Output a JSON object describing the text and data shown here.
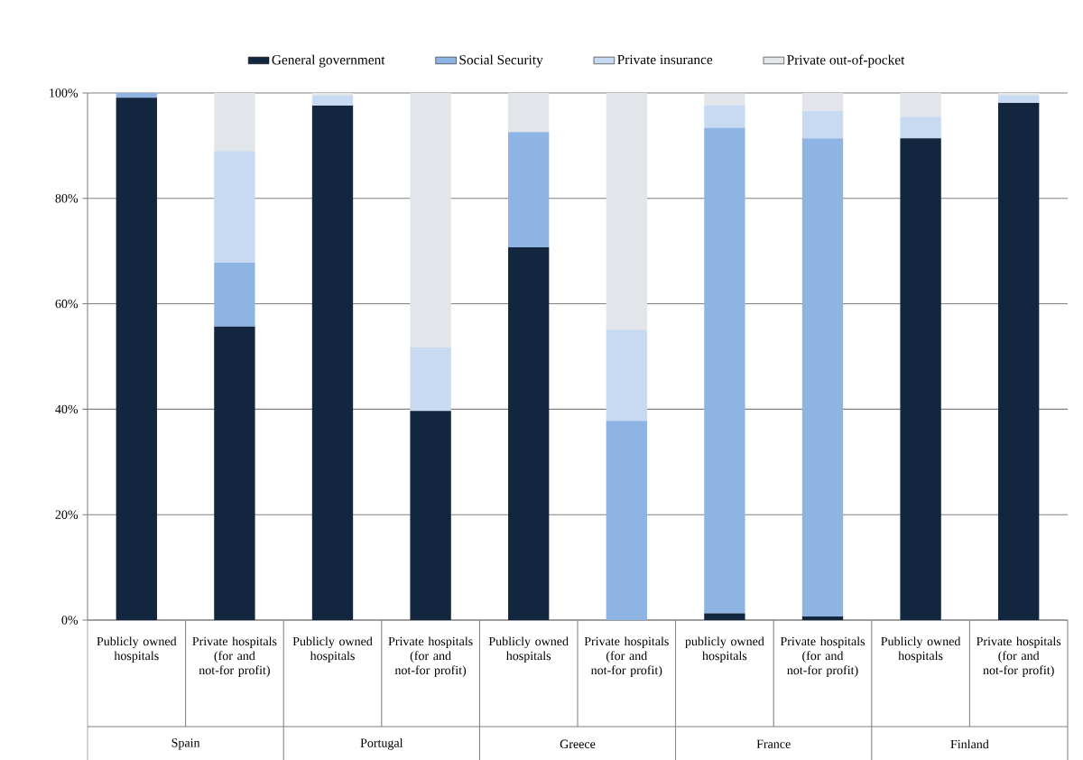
{
  "chart_data": {
    "type": "bar",
    "stacked": true,
    "categories": [
      "Publicly owned hospitals",
      "Private hospitals (for and not-for profit)",
      "Publicly owned hospitals",
      "Private hospitals (for and not-for profit)",
      "Publicly owned hospitals",
      "Private hospitals (for and not-for profit)",
      "publicly owned hospitals",
      "Private hospitals (for and not-for profit)",
      "Publicly owned hospitals",
      "Private hospitals (for and not-for profit)"
    ],
    "series": [
      {
        "name": "General government",
        "color": "#12263f",
        "values": [
          99.1,
          55.7,
          97.6,
          39.7,
          70.7,
          null,
          1.3,
          0.7,
          91.4,
          98.1
        ]
      },
      {
        "name": "Social Security",
        "color": "#8eb4e3",
        "values": [
          0.9,
          12.1,
          null,
          null,
          21.9,
          37.8,
          92.1,
          90.7,
          null,
          null
        ]
      },
      {
        "name": "Private insurance",
        "color": "#c7daf1",
        "values": [
          null,
          21.2,
          1.9,
          12.0,
          null,
          17.3,
          4.3,
          5.2,
          4.1,
          1.4
        ]
      },
      {
        "name": "Private out-of-pocket",
        "color": "#e2e5e9",
        "values": [
          null,
          11.0,
          0.5,
          48.3,
          7.4,
          44.9,
          2.2,
          3.4,
          4.5,
          0.5
        ]
      }
    ],
    "annotations": [
      "Spain",
      "Portugal",
      "Greece",
      "France",
      "Finland"
    ],
    "ylim": [
      0,
      100
    ],
    "yticks": [
      {
        "value": 0,
        "label": "0%"
      },
      {
        "value": 20,
        "label": "20%"
      },
      {
        "value": 40,
        "label": "40%"
      },
      {
        "value": 60,
        "label": "60%"
      },
      {
        "value": 80,
        "label": "80%"
      },
      {
        "value": 100,
        "label": "100%"
      }
    ],
    "grid": "y",
    "legend": "top"
  }
}
